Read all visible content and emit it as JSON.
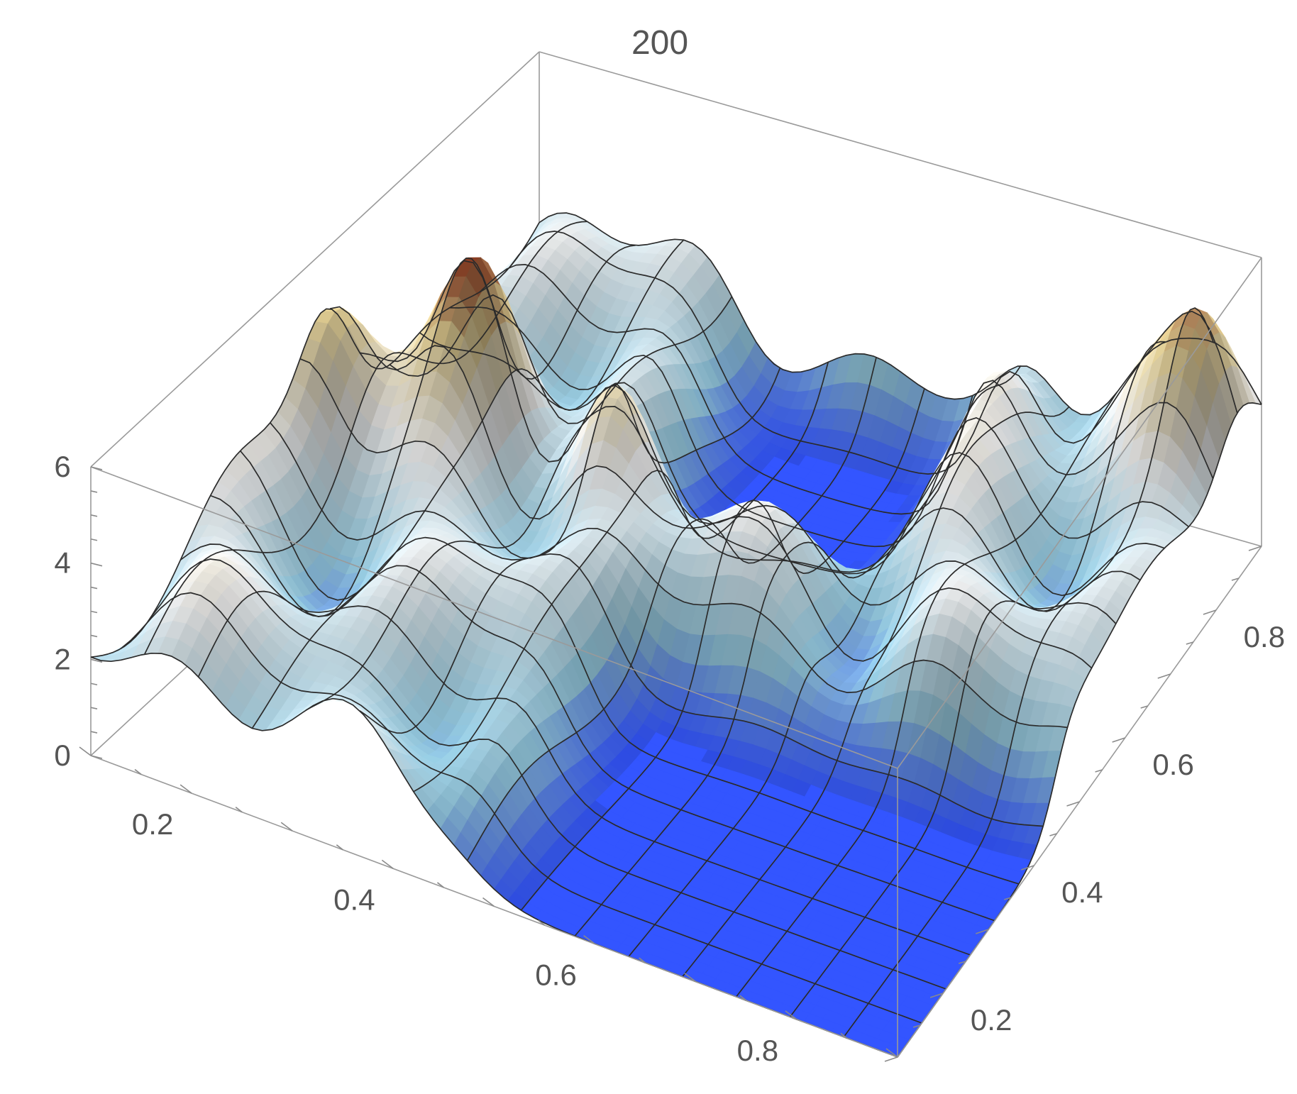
{
  "chart_data": {
    "type": "surface3d",
    "title": "200",
    "x_ticks": [
      "0.2",
      "0.4",
      "0.6",
      "0.8"
    ],
    "y_ticks": [
      "0.2",
      "0.4",
      "0.6",
      "0.8"
    ],
    "z_ticks": [
      "0",
      "2",
      "4",
      "6"
    ],
    "xlim": [
      0.1,
      0.9
    ],
    "ylim": [
      0.1,
      0.9
    ],
    "zlim": [
      0,
      6
    ],
    "mesh_lines": 15,
    "colors": {
      "flat_region": "#3355ff",
      "surface_low": "#9fd8f0",
      "surface_mid": "#ffffff",
      "surface_high": "#f2dc9c",
      "surface_peak": "#8a3a20",
      "mesh": "#2b2b2b",
      "box": "#9a9a9a"
    },
    "flat_regions": [
      {
        "x": [
          0.46,
          0.9
        ],
        "y": [
          0.1,
          0.45
        ],
        "z": 0
      },
      {
        "x": [
          0.35,
          0.62
        ],
        "y": [
          0.62,
          0.9
        ],
        "z": 0
      }
    ],
    "peaks": [
      {
        "x": 0.11,
        "y": 0.52,
        "z": 5.6
      },
      {
        "x": 0.22,
        "y": 0.6,
        "z": 5.3
      },
      {
        "x": 0.37,
        "y": 0.58,
        "z": 4.9
      },
      {
        "x": 0.64,
        "y": 0.82,
        "z": 4.6
      },
      {
        "x": 0.87,
        "y": 0.85,
        "z": 5.4
      }
    ]
  }
}
